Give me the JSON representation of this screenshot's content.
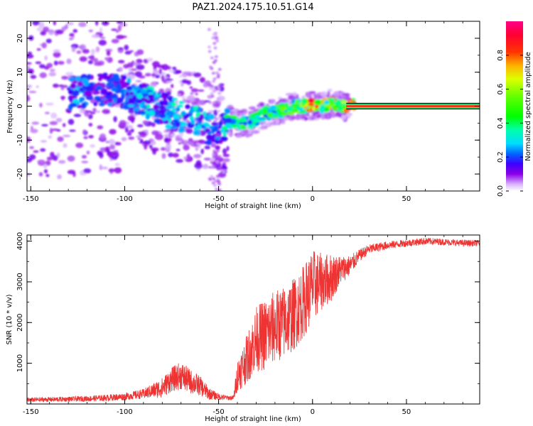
{
  "title": "PAZ1.2024.175.10.51.G14",
  "chart_data": [
    {
      "type": "heatmap",
      "xlabel": "Height of straight line (km)",
      "ylabel": "Frequency (Hz)",
      "xlim": [
        -152,
        89
      ],
      "ylim": [
        -25,
        25
      ],
      "x_ticks": [
        -150,
        -100,
        -50,
        0,
        50
      ],
      "y_ticks": [
        -20,
        -10,
        0,
        10,
        20
      ],
      "colorbar": {
        "label": "Normalized spectral amplitude",
        "range": [
          0,
          1
        ],
        "ticks": [
          0.0,
          0.2,
          0.4,
          0.6,
          0.8
        ],
        "colormap": "gist_ncar-like (white-violet-blue-cyan-green-yellow-red-magenta)"
      },
      "ridge": {
        "description": "Dominant frequency track of the spectrum",
        "x": [
          -125,
          -110,
          -100,
          -90,
          -80,
          -70,
          -60,
          -50,
          -45,
          -40,
          -35,
          -30,
          -25,
          -20,
          -15,
          -10,
          -5,
          0,
          5,
          10,
          15,
          20,
          30,
          50,
          70,
          88
        ],
        "y": [
          4,
          5,
          4,
          2,
          -1,
          -3,
          -5,
          -8,
          -4,
          -5,
          -5,
          -4,
          -2,
          -2,
          -1,
          0,
          0,
          0,
          0,
          1,
          0,
          0,
          0,
          0,
          0,
          0
        ],
        "amplitude": [
          0.25,
          0.2,
          0.2,
          0.3,
          0.25,
          0.35,
          0.3,
          0.2,
          0.4,
          0.45,
          0.45,
          0.4,
          0.4,
          0.45,
          0.5,
          0.55,
          0.6,
          0.8,
          0.6,
          0.8,
          0.6,
          0.9,
          0.95,
          0.95,
          0.95,
          0.95
        ]
      }
    },
    {
      "type": "line",
      "xlabel": "Height of straight line (km)",
      "ylabel": "SNR (10 * v/v)",
      "xlim": [
        -152,
        89
      ],
      "ylim": [
        0,
        4150
      ],
      "x_ticks": [
        -150,
        -100,
        -50,
        0,
        50
      ],
      "y_ticks": [
        1000,
        2000,
        3000,
        4000
      ],
      "color": "#ee3333",
      "series": [
        {
          "x": [
            -152,
            -140,
            -130,
            -120,
            -110,
            -100,
            -90,
            -80,
            -75,
            -70,
            -65,
            -60,
            -55,
            -50,
            -45,
            -42,
            -40,
            -35,
            -30,
            -25,
            -20,
            -15,
            -10,
            -5,
            0,
            5,
            10,
            15,
            20,
            25,
            30,
            40,
            50,
            60,
            70,
            80,
            89
          ],
          "values": [
            100,
            110,
            120,
            130,
            150,
            180,
            250,
            400,
            600,
            700,
            550,
            450,
            250,
            180,
            150,
            150,
            700,
            1100,
            1600,
            1700,
            1900,
            2000,
            2200,
            2500,
            2900,
            3000,
            3100,
            3300,
            3400,
            3650,
            3800,
            3900,
            3950,
            4000,
            3980,
            3950,
            3950
          ],
          "spread": [
            60,
            60,
            60,
            70,
            80,
            90,
            120,
            250,
            300,
            350,
            300,
            250,
            150,
            80,
            60,
            60,
            400,
            600,
            800,
            900,
            900,
            900,
            900,
            900,
            900,
            700,
            600,
            350,
            250,
            150,
            120,
            100,
            90,
            90,
            80,
            80,
            80
          ]
        }
      ]
    }
  ]
}
